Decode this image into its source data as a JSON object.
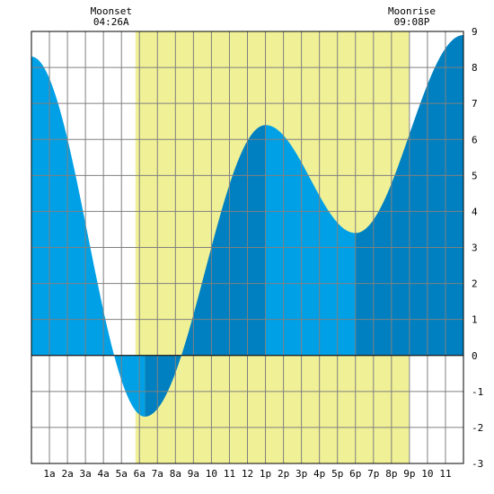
{
  "chart_data": {
    "type": "area",
    "title": "",
    "xlabel": "",
    "ylabel": "",
    "xlim": [
      0,
      24
    ],
    "ylim": [
      -3,
      9
    ],
    "grid": true,
    "x_tick_labels": [
      "1a",
      "2a",
      "3a",
      "4a",
      "5a",
      "6a",
      "7a",
      "8a",
      "9a",
      "10",
      "11",
      "12",
      "1p",
      "2p",
      "3p",
      "4p",
      "5p",
      "6p",
      "7p",
      "8p",
      "9p",
      "10",
      "11"
    ],
    "y_tick_labels": [
      "-3",
      "-2",
      "-1",
      "0",
      "1",
      "2",
      "3",
      "4",
      "5",
      "6",
      "7",
      "8",
      "9"
    ],
    "daylight": {
      "start": 5.78,
      "end": 20.97
    },
    "annotations": [
      {
        "id": "moonset",
        "title": "Moonset",
        "time": "04:26A",
        "x": 4.43
      },
      {
        "id": "moonrise",
        "title": "Moonrise",
        "time": "09:08P",
        "x": 21.13
      }
    ],
    "tide_extremes": [
      {
        "x": 0.0,
        "y": 8.3
      },
      {
        "x": 6.3,
        "y": -1.7
      },
      {
        "x": 13.0,
        "y": 6.4
      },
      {
        "x": 18.0,
        "y": 3.4
      },
      {
        "x": 24.0,
        "y": 8.9
      }
    ],
    "series": [
      {
        "values": [
          [
            0,
            8.3
          ],
          [
            1,
            7.3
          ],
          [
            2,
            4.6
          ],
          [
            3,
            1.4
          ],
          [
            4,
            -0.8
          ],
          [
            5,
            -1.7
          ],
          [
            6,
            -1.6
          ],
          [
            7,
            -0.1
          ],
          [
            8,
            1.9
          ],
          [
            9,
            3.7
          ],
          [
            10,
            5.2
          ],
          [
            11,
            6.1
          ],
          [
            12,
            6.4
          ],
          [
            13,
            6.4
          ],
          [
            14,
            5.8
          ],
          [
            15,
            4.7
          ],
          [
            16,
            3.8
          ],
          [
            17,
            3.4
          ],
          [
            18,
            3.4
          ],
          [
            19,
            4.1
          ],
          [
            20,
            5.5
          ],
          [
            21,
            7.0
          ],
          [
            22,
            8.2
          ],
          [
            23,
            8.8
          ],
          [
            24,
            8.9
          ]
        ]
      }
    ],
    "colors": {
      "tide_light": "#00a0e6",
      "tide_dark": "#0080c0",
      "daylight": "#f0f096",
      "grid": "#808080"
    }
  }
}
